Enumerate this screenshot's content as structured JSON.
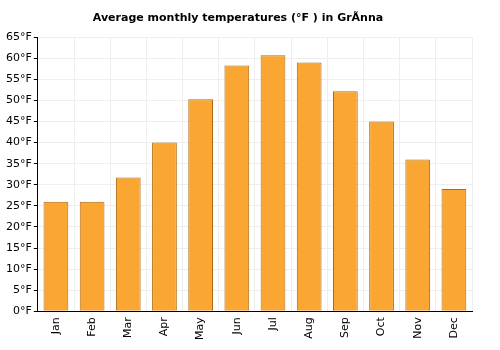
{
  "chart_data": {
    "type": "bar",
    "title": "Average monthly temperatures (°F ) in GrÃnna",
    "categories": [
      "Jan",
      "Feb",
      "Mar",
      "Apr",
      "May",
      "Jun",
      "Jul",
      "Aug",
      "Sep",
      "Oct",
      "Nov",
      "Dec"
    ],
    "values": [
      26,
      26,
      31.7,
      40,
      50.3,
      58.3,
      60.7,
      59,
      52.2,
      45,
      36,
      29
    ],
    "color": "#f9a633",
    "ylim": [
      0,
      65
    ],
    "yticks": [
      {
        "value": 0,
        "label": "0°F"
      },
      {
        "value": 5,
        "label": "5°F"
      },
      {
        "value": 10,
        "label": "10°F"
      },
      {
        "value": 15,
        "label": "15°F"
      },
      {
        "value": 20,
        "label": "20°F"
      },
      {
        "value": 25,
        "label": "25°F"
      },
      {
        "value": 30,
        "label": "30°F"
      },
      {
        "value": 35,
        "label": "35°F"
      },
      {
        "value": 40,
        "label": "40°F"
      },
      {
        "value": 45,
        "label": "45°F"
      },
      {
        "value": 50,
        "label": "50°F"
      },
      {
        "value": 55,
        "label": "55°F"
      },
      {
        "value": 60,
        "label": "60°F"
      },
      {
        "value": 65,
        "label": "65°F"
      }
    ],
    "grid": true
  }
}
